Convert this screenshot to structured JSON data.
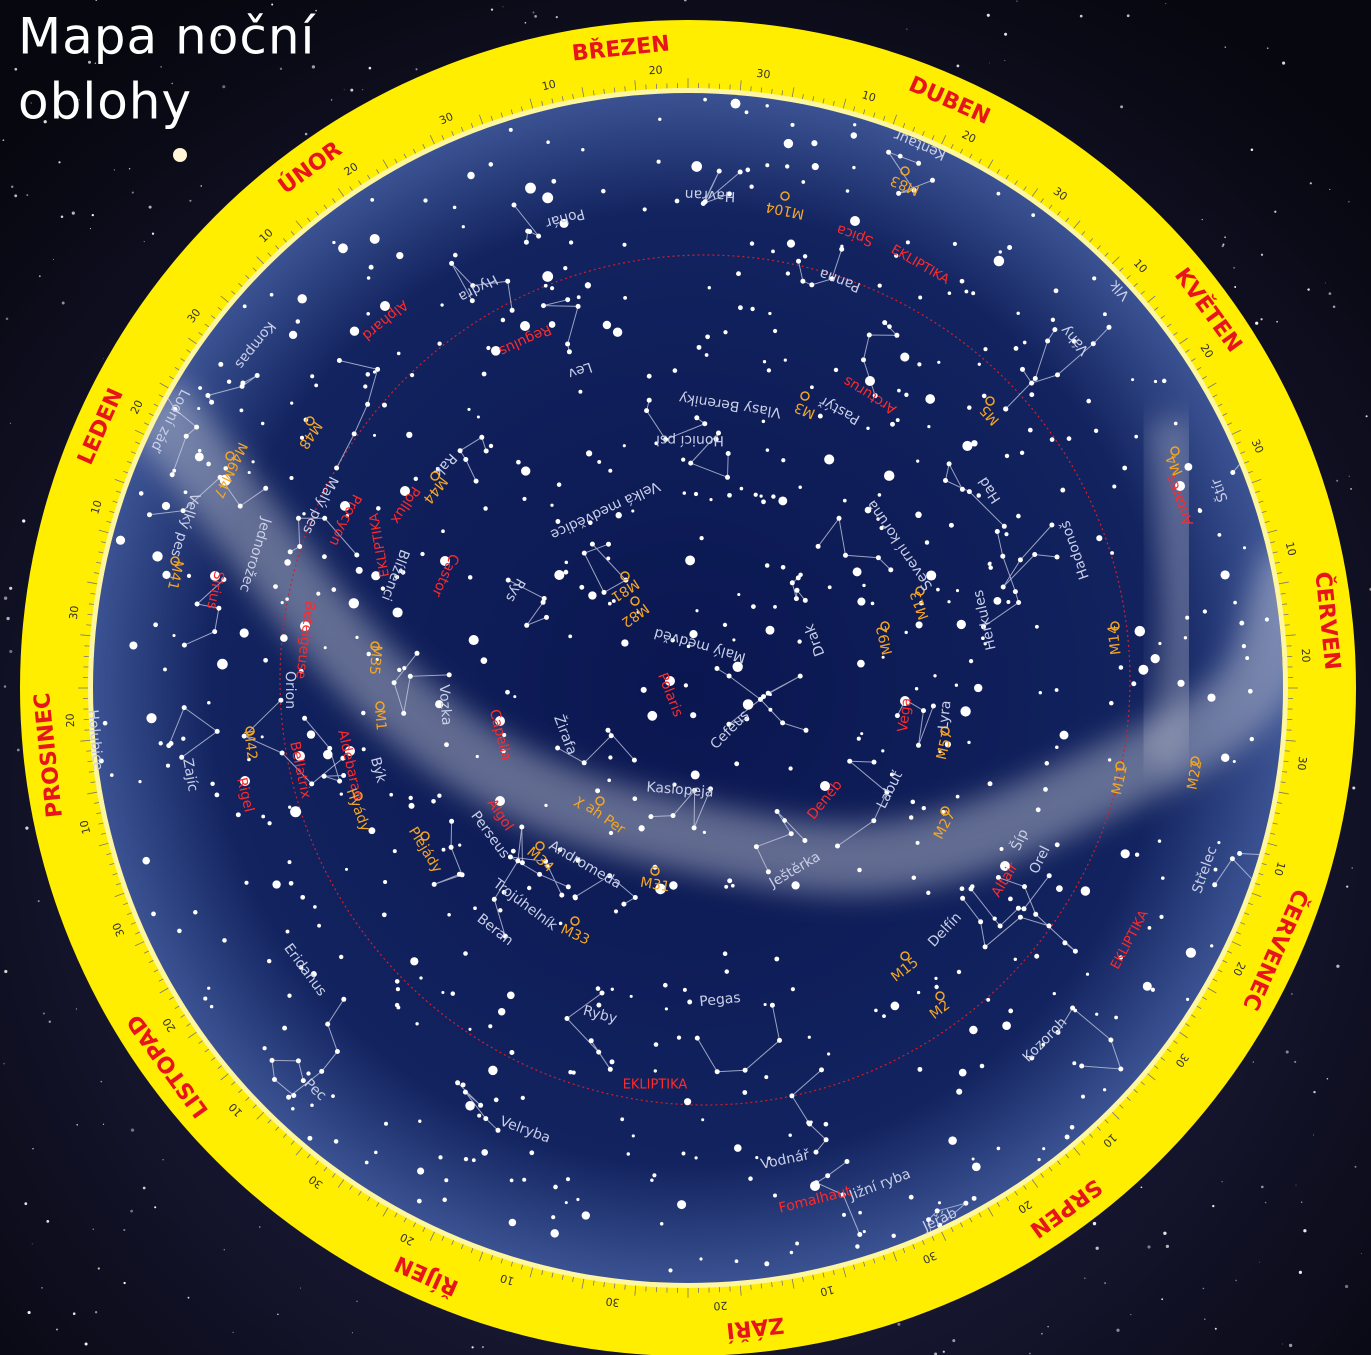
{
  "title_lines": [
    "Mapa noční",
    "oblohy"
  ],
  "months": [
    "BŘEZEN",
    "DUBEN",
    "KVĚTEN",
    "ČERVEN",
    "ČERVENEC",
    "SRPEN",
    "ZÁŘÍ",
    "ŘÍJEN",
    "LISTOPAD",
    "PROSINEC",
    "LEDEN",
    "ÚNOR"
  ],
  "ring_numbers": [
    "10",
    "20",
    "30"
  ],
  "ecliptic_label": "EKLIPTIKA",
  "constellations": [
    "Kentaur",
    "Havran",
    "Pohár",
    "Hydra",
    "Kompas",
    "Lodní záď",
    "Velký pes",
    "Jednorožec",
    "Malý pes",
    "Rak",
    "Blíženci",
    "Orion",
    "Holubice",
    "Zajíc",
    "Býk",
    "Vozka",
    "Žirafa",
    "Perseus",
    "Andromeda",
    "Trojúhelník",
    "Beran",
    "Ryby",
    "Pegas",
    "Velryba",
    "Eridanus",
    "Pec",
    "Vodnář",
    "Jižní ryba",
    "Jeřáb",
    "Kozoroh",
    "Střelec",
    "Štír",
    "Had",
    "Hadonoš",
    "Herkules",
    "Severní koruna",
    "Pastýř",
    "Váhy",
    "Vlk",
    "Panna",
    "Lev",
    "Vlasy Bereniky",
    "Honicí psi",
    "Velká medvědice",
    "Rys",
    "Malý medvěd",
    "Drak",
    "Cefeus",
    "Kasiopeja",
    "Labuť",
    "Lyra",
    "Šíp",
    "Orel",
    "Delfín",
    "Ještěrka"
  ],
  "stars": [
    "Spica",
    "Regulus",
    "Alphard",
    "Procyon",
    "Pollux",
    "Castor",
    "Sirius",
    "Betelgeuse",
    "Bellatrix",
    "Rigel",
    "Aldebaran",
    "Capella",
    "Algol",
    "Polaris",
    "Arcturus",
    "Antares",
    "Vega",
    "Deneb",
    "Altair",
    "Fomalhaut"
  ],
  "objects": [
    "M104",
    "M83",
    "M3",
    "M5",
    "M48",
    "M46M47",
    "M44",
    "M41",
    "M35",
    "M1",
    "M42",
    "M34",
    "M31",
    "M33",
    "χ ah Per",
    "M81",
    "M82",
    "M92",
    "M13",
    "M57",
    "M27",
    "M15",
    "M2",
    "M11",
    "M22",
    "M14",
    "M4",
    "Hyády",
    "Plejády"
  ]
}
